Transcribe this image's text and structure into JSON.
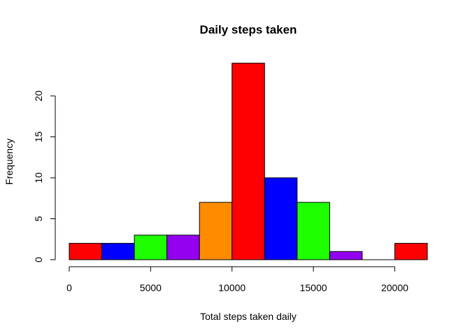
{
  "chart_data": {
    "type": "bar",
    "title": "Daily steps taken",
    "xlabel": "Total steps taken daily",
    "ylabel": "Frequency",
    "bin_edges": [
      0,
      2000,
      4000,
      6000,
      8000,
      10000,
      12000,
      14000,
      16000,
      18000,
      20000,
      22000
    ],
    "values": [
      2,
      2,
      3,
      3,
      7,
      24,
      10,
      7,
      1,
      0,
      2
    ],
    "bar_colors": [
      "#ff0000",
      "#0000ff",
      "#1eff00",
      "#9400f0",
      "#ff8c00",
      "#ff0000",
      "#0000ff",
      "#1eff00",
      "#9400f0",
      "#ff8c00",
      "#ff0000"
    ],
    "xlim": [
      0,
      22000
    ],
    "ylim": [
      0,
      24
    ],
    "x_ticks": [
      0,
      5000,
      10000,
      15000,
      20000
    ],
    "x_tick_labels": [
      "0",
      "5000",
      "10000",
      "15000",
      "20000"
    ],
    "y_ticks": [
      0,
      5,
      10,
      15,
      20
    ],
    "y_tick_labels": [
      "0",
      "5",
      "10",
      "15",
      "20"
    ],
    "grid": false,
    "legend": "none"
  }
}
